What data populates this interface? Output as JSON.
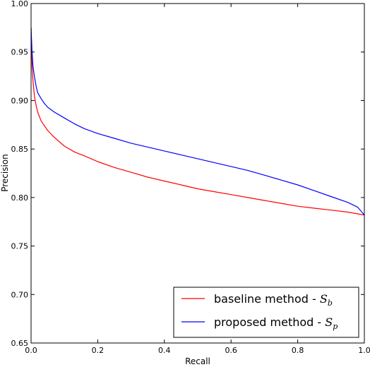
{
  "chart_data": {
    "type": "line",
    "title": "",
    "xlabel": "Recall",
    "ylabel": "Precision",
    "xlim": [
      0.0,
      1.0
    ],
    "ylim": [
      0.65,
      1.0
    ],
    "xticks": [
      "0.0",
      "0.2",
      "0.4",
      "0.6",
      "0.8",
      "1.0"
    ],
    "yticks": [
      "0.65",
      "0.70",
      "0.75",
      "0.80",
      "0.85",
      "0.90",
      "0.95",
      "1.00"
    ],
    "grid": false,
    "legend": {
      "placement": "bottom-right"
    },
    "series": [
      {
        "name": "baseline method - S_b",
        "label_text": "baseline method - ",
        "label_symbol": "S",
        "label_subscript": "b",
        "color": "#ff0000",
        "x": [
          0.0,
          0.003,
          0.006,
          0.01,
          0.015,
          0.02,
          0.03,
          0.04,
          0.05,
          0.07,
          0.1,
          0.13,
          0.16,
          0.2,
          0.25,
          0.3,
          0.35,
          0.4,
          0.45,
          0.5,
          0.55,
          0.6,
          0.65,
          0.7,
          0.75,
          0.8,
          0.85,
          0.9,
          0.95,
          1.0
        ],
        "y": [
          0.975,
          0.935,
          0.92,
          0.905,
          0.895,
          0.888,
          0.879,
          0.874,
          0.869,
          0.862,
          0.853,
          0.847,
          0.843,
          0.837,
          0.831,
          0.826,
          0.821,
          0.817,
          0.813,
          0.809,
          0.806,
          0.803,
          0.8,
          0.797,
          0.794,
          0.791,
          0.789,
          0.787,
          0.785,
          0.782
        ]
      },
      {
        "name": "proposed method - S_p",
        "label_text": "proposed method - ",
        "label_symbol": "S",
        "label_subscript": "p",
        "color": "#0000ff",
        "x": [
          0.0,
          0.003,
          0.006,
          0.01,
          0.015,
          0.02,
          0.03,
          0.04,
          0.05,
          0.07,
          0.1,
          0.13,
          0.16,
          0.2,
          0.25,
          0.3,
          0.35,
          0.4,
          0.45,
          0.5,
          0.55,
          0.6,
          0.65,
          0.7,
          0.75,
          0.8,
          0.85,
          0.9,
          0.95,
          0.98,
          1.0
        ],
        "y": [
          0.975,
          0.95,
          0.935,
          0.925,
          0.915,
          0.908,
          0.902,
          0.897,
          0.893,
          0.888,
          0.882,
          0.876,
          0.871,
          0.866,
          0.861,
          0.856,
          0.852,
          0.848,
          0.844,
          0.84,
          0.836,
          0.832,
          0.828,
          0.823,
          0.818,
          0.813,
          0.807,
          0.801,
          0.795,
          0.79,
          0.782
        ]
      }
    ]
  }
}
